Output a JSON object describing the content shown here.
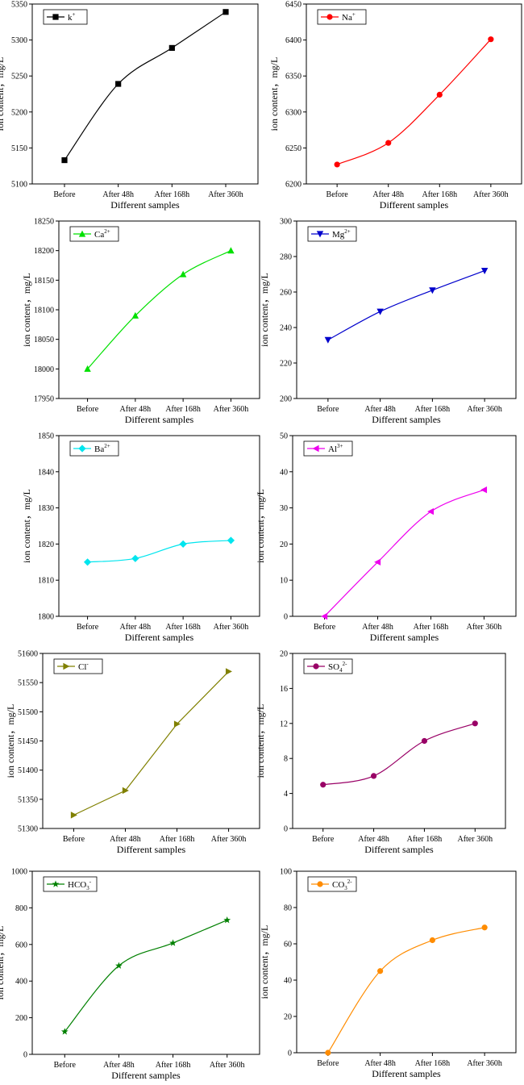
{
  "figure": {
    "y_axis_label": "ion content，mg/L",
    "x_axis_label": "Different samples"
  },
  "chart_data": [
    {
      "id": "k",
      "type": "line",
      "title": "",
      "categories": [
        "Before",
        "After 48h",
        "After 168h",
        "After 360h"
      ],
      "xlabel": "Different samples",
      "ylabel": "ion content，mg/L",
      "series": [
        {
          "name": "k",
          "sup": "+",
          "sub": "",
          "values": [
            5133,
            5239,
            5289,
            5339
          ],
          "color": "#000000",
          "marker": "square",
          "curve": "smooth"
        }
      ],
      "ylim": [
        5100,
        5350
      ],
      "yticks": [
        5100,
        5150,
        5200,
        5250,
        5300,
        5350
      ],
      "legend": "top-left"
    },
    {
      "id": "na",
      "type": "line",
      "title": "",
      "categories": [
        "Before",
        "After 48h",
        "After 168h",
        "After 360h"
      ],
      "xlabel": "Different samples",
      "ylabel": "ion content，mg/L",
      "series": [
        {
          "name": "Na",
          "sup": "+",
          "sub": "",
          "values": [
            6227,
            6257,
            6324,
            6401
          ],
          "color": "#ff0000",
          "marker": "circle",
          "curve": "smooth"
        }
      ],
      "ylim": [
        6200,
        6450
      ],
      "yticks": [
        6200,
        6250,
        6300,
        6350,
        6400,
        6450
      ],
      "legend": "top-left"
    },
    {
      "id": "ca",
      "type": "line",
      "title": "",
      "categories": [
        "Before",
        "After 48h",
        "After 168h",
        "After 360h"
      ],
      "xlabel": "Different samples",
      "ylabel": "ion content，mg/L",
      "series": [
        {
          "name": "Ca",
          "sup": "2+",
          "sub": "",
          "values": [
            18000,
            18090,
            18160,
            18200
          ],
          "color": "#00e000",
          "marker": "triangle-up",
          "curve": "smooth"
        }
      ],
      "ylim": [
        17950,
        18250
      ],
      "yticks": [
        17950,
        18000,
        18050,
        18100,
        18150,
        18200,
        18250
      ],
      "legend": "top-left"
    },
    {
      "id": "mg",
      "type": "line",
      "title": "",
      "categories": [
        "Before",
        "After 48h",
        "After 168h",
        "After 360h"
      ],
      "xlabel": "Different samples",
      "ylabel": "ion content，mg/L",
      "series": [
        {
          "name": "Mg",
          "sup": "2+",
          "sub": "",
          "values": [
            233,
            249,
            261,
            272
          ],
          "color": "#0000cc",
          "marker": "triangle-down",
          "curve": "smooth"
        }
      ],
      "ylim": [
        200,
        300
      ],
      "yticks": [
        200,
        220,
        240,
        260,
        280,
        300
      ],
      "legend": "top-left"
    },
    {
      "id": "ba",
      "type": "line",
      "title": "",
      "categories": [
        "Before",
        "After 48h",
        "After 168h",
        "After 360h"
      ],
      "xlabel": "Different samples",
      "ylabel": "ion content，mg/L",
      "series": [
        {
          "name": "Ba",
          "sup": "2+",
          "sub": "",
          "values": [
            1815,
            1816,
            1820,
            1821
          ],
          "color": "#00e5ee",
          "marker": "diamond",
          "curve": "smooth"
        }
      ],
      "ylim": [
        1800,
        1850
      ],
      "yticks": [
        1800,
        1810,
        1820,
        1830,
        1840,
        1850
      ],
      "legend": "top-left"
    },
    {
      "id": "al",
      "type": "line",
      "title": "",
      "categories": [
        "Before",
        "After 48h",
        "After 168h",
        "After 360h"
      ],
      "xlabel": "Different samples",
      "ylabel": "ion content，mg/L",
      "series": [
        {
          "name": "Al",
          "sup": "3+",
          "sub": "",
          "values": [
            0,
            15,
            29,
            35
          ],
          "color": "#ee00ee",
          "marker": "triangle-left",
          "curve": "smooth"
        }
      ],
      "ylim": [
        0,
        50
      ],
      "yticks": [
        0,
        10,
        20,
        30,
        40,
        50
      ],
      "legend": "top-left"
    },
    {
      "id": "cl",
      "type": "line",
      "title": "",
      "categories": [
        "Before",
        "After 48h",
        "After 168h",
        "After 360h"
      ],
      "xlabel": "Different samples",
      "ylabel": "ion content，mg/L",
      "series": [
        {
          "name": "Cl",
          "sup": "-",
          "sub": "",
          "values": [
            51323,
            51365,
            51479,
            51569
          ],
          "color": "#808000",
          "marker": "triangle-right",
          "curve": "straight"
        }
      ],
      "ylim": [
        51300,
        51600
      ],
      "yticks": [
        51300,
        51350,
        51400,
        51450,
        51500,
        51550,
        51600
      ],
      "legend": "top-left"
    },
    {
      "id": "so4",
      "type": "line",
      "title": "",
      "categories": [
        "Before",
        "After 48h",
        "After 168h",
        "After 360h"
      ],
      "xlabel": "Different samples",
      "ylabel": "ion content，mg/L",
      "series": [
        {
          "name": "SO",
          "sup": "2-",
          "sub": "4",
          "values": [
            5,
            6,
            10,
            12
          ],
          "color": "#990066",
          "marker": "circle",
          "curve": "smooth"
        }
      ],
      "ylim": [
        0,
        20
      ],
      "yticks": [
        0,
        4,
        8,
        12,
        16,
        20
      ],
      "legend": "top-left"
    },
    {
      "id": "hco3",
      "type": "line",
      "title": "",
      "categories": [
        "Before",
        "After 48h",
        "After 168h",
        "After 360h"
      ],
      "xlabel": "Different samples",
      "ylabel": "ion content，mg/L",
      "series": [
        {
          "name": "HCO",
          "sup": "-",
          "sub": "3",
          "values": [
            124,
            484,
            608,
            733
          ],
          "color": "#008000",
          "marker": "star",
          "curve": "smooth"
        }
      ],
      "ylim": [
        0,
        1000
      ],
      "yticks": [
        0,
        200,
        400,
        600,
        800,
        1000
      ],
      "legend": "top-left"
    },
    {
      "id": "co3",
      "type": "line",
      "title": "",
      "categories": [
        "Before",
        "After 48h",
        "After 168h",
        "After 360h"
      ],
      "xlabel": "Different samples",
      "ylabel": "ion content，mg/L",
      "series": [
        {
          "name": "CO",
          "sup": "2-",
          "sub": "3",
          "values": [
            0,
            45,
            62,
            69
          ],
          "color": "#ff8c00",
          "marker": "circle",
          "curve": "smooth"
        }
      ],
      "ylim": [
        0,
        100
      ],
      "yticks": [
        0,
        20,
        40,
        60,
        80,
        100
      ],
      "legend": "top-left"
    }
  ]
}
